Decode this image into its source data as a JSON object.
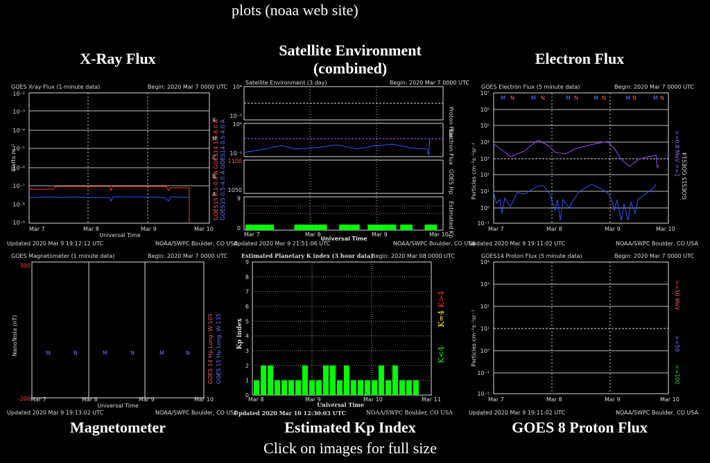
{
  "page": {
    "top_text": "plots (noaa web site)",
    "bottom_text": "Click on images for full size"
  },
  "headings": {
    "xray": "X-Ray Flux",
    "sat_line1": "Satellite Environment",
    "sat_line2": "(combined)",
    "electron": "Electron Flux",
    "magnetometer": "Magnetometer",
    "kp": "Estimated Kp Index",
    "proton": "GOES 8 Proton Flux"
  },
  "colors": {
    "background": "#000000",
    "grid": "#aaaaaa",
    "kp_bar": "#00ff00",
    "red_series": "#ff3333",
    "blue_series": "#3355ff",
    "purple_series": "#9944ff"
  },
  "plots": {
    "xray": {
      "title": "GOES Xray Flux (1-minute data)",
      "begin": "Begin:  2020 Mar 7 0000 UTC",
      "ylabel": "Watts m⁻²",
      "yticks": [
        "10⁻²",
        "10⁻³",
        "10⁻⁴",
        "10⁻⁵",
        "10⁻⁶",
        "10⁻⁷",
        "10⁻⁸",
        "10⁻⁹"
      ],
      "right_letters": [
        "X",
        "M",
        "C",
        "B",
        "A"
      ],
      "legend_red": "GOES15 0.1-0.8 A   GOES14 1.0-8.0 A",
      "legend_blue": "GOES15 0.5-4.0 A   GOES14 0.5-4.0 A",
      "xticks": [
        "Mar 7",
        "Mar 8",
        "Mar 9",
        "Mar 10"
      ],
      "xlabel": "Universal Time",
      "updated": "Updated 2020 Mar  9 19:12:12 UTC",
      "credit": "NOAA/SWPC Boulder, CO USA"
    },
    "satenv": {
      "title": "Satellite Environment (3 day)",
      "begin": "Begin:  2020 Mar 7 0000 UTC",
      "panel_labels": [
        "Proton Flux",
        "Electron Flux",
        "GOES Hp",
        "Estimated Kp"
      ],
      "yticks_top": [
        "10⁴",
        "10⁻²"
      ],
      "yticks_mid": [
        "10⁶",
        "10⁻¹"
      ],
      "yticks_hp": [
        "1100",
        "1050"
      ],
      "yticks_kp": [
        "9",
        "0"
      ],
      "xticks": [
        "Mar 7",
        "Mar 8",
        "Mar 9",
        "Mar 10"
      ],
      "xlabel": "Universal Time",
      "kp_values": [
        1,
        1,
        1,
        1,
        1,
        1,
        1,
        0,
        0,
        0,
        0,
        0,
        1,
        1,
        1,
        1,
        1,
        1,
        1,
        1,
        0,
        0,
        0,
        1,
        1,
        1,
        1,
        1,
        0,
        0,
        1,
        1,
        1,
        1,
        1,
        1,
        1,
        0,
        1,
        1,
        1,
        0,
        0,
        0,
        1,
        1,
        1
      ],
      "updated": "Updated 2020 Mar  9 21:51:06 UTC",
      "credit": "NOAA/SWPC Boulder, CO USA"
    },
    "electron": {
      "title": "GOES Electron Flux (5 minute data)",
      "begin": "Begin:  2020 Mar 7 0000 UTC",
      "ylabel": "Particles cm⁻²s⁻¹sr⁻¹",
      "yticks": [
        "10⁷",
        "10⁶",
        "10⁵",
        "10⁴",
        "10³",
        "10²",
        "10¹",
        "10⁰",
        "10⁻¹"
      ],
      "legend_top": ">=0.8 MeV   >=2",
      "legend_bottom": "GOES15   GOES14",
      "top_marks": [
        "M",
        "N",
        "M",
        "N",
        "M",
        "N",
        "M",
        "N",
        "M",
        "N",
        "M",
        "N"
      ],
      "xticks": [
        "Mar 7",
        "Mar 8",
        "Mar 9",
        "Mar 10"
      ],
      "updated": "Updated 2020 Mar  9 19:11:02 UTC",
      "credit": "NOAA/SWPC Boulder, CO USA"
    },
    "magnetometer": {
      "title": "GOES Magnetometer (1 minute data)",
      "begin": "Begin:  2020 Mar 7 0000 UTC",
      "ylabel": "NanoTesla (nT)",
      "ytop": "300",
      "ybottom": "-200",
      "mid_marks": [
        "M",
        "N",
        "M",
        "N",
        "M",
        "N"
      ],
      "legend_red": "GOES 14 Hp   Long. W 105",
      "legend_blue": "GOES 15 Hp   Long. W 135",
      "xticks": [
        "Mar 7",
        "Mar 8",
        "Mar 9",
        "Mar 10"
      ],
      "xlabel": "Universal Time",
      "updated": "Updated 2020 Mar  9 19:13:02 UTC",
      "credit": "NOAA/SWPC Boulder, CO USA"
    },
    "kp": {
      "title": "Estimated Planetary K index (3 hour data)",
      "begin": "Begin:  2020 Mar 08 0000 UTC",
      "ylabel": "Kp index",
      "xlabel": "Universal Time",
      "xticks": [
        "Mar 8",
        "Mar 9",
        "Mar 10",
        "Mar 11"
      ],
      "legend": [
        "K<4",
        "K=4",
        "K>4"
      ],
      "updated": "Updated 2020 Mar 10 12:30:03 UTC",
      "credit": "NOAA/SWPC Boulder, CO USA"
    },
    "proton": {
      "title": "GOES14 Proton Flux (5 minute data)",
      "begin": "Begin:  2020 Mar 7 0000 UTC",
      "ylabel": "Particles cm⁻²s⁻¹sr⁻¹",
      "yticks": [
        "10⁴",
        "10³",
        "10²",
        "10¹",
        "10⁰",
        "10⁻¹",
        "10⁻²"
      ],
      "legend": [
        ">=10 MeV",
        ">=50",
        ">=100"
      ],
      "xticks": [
        "Mar 7",
        "Mar 8",
        "Mar 9",
        "Mar 10"
      ],
      "updated": "Updated 2020 Mar  9 19:11:02 UTC",
      "credit": "NOAA/SWPC Boulder, CO USA"
    }
  },
  "chart_data": [
    {
      "type": "bar",
      "title": "Estimated Planetary K index (3 hour data)",
      "xlabel": "Universal Time",
      "ylabel": "Kp index",
      "categories": [
        "Mar 8",
        "",
        "",
        "",
        "",
        "",
        "",
        "",
        "Mar 9",
        "",
        "",
        "",
        "",
        "",
        "",
        "",
        "Mar 10",
        "",
        "",
        "",
        "",
        "",
        "",
        ""
      ],
      "values": [
        1,
        2,
        2,
        1,
        1,
        1,
        1,
        2,
        1,
        1,
        2,
        2,
        1,
        2,
        1,
        1,
        1,
        1,
        2,
        1,
        2,
        1,
        1,
        1
      ],
      "ylim": [
        0,
        9
      ],
      "grid": true,
      "legend_position": "right"
    }
  ]
}
